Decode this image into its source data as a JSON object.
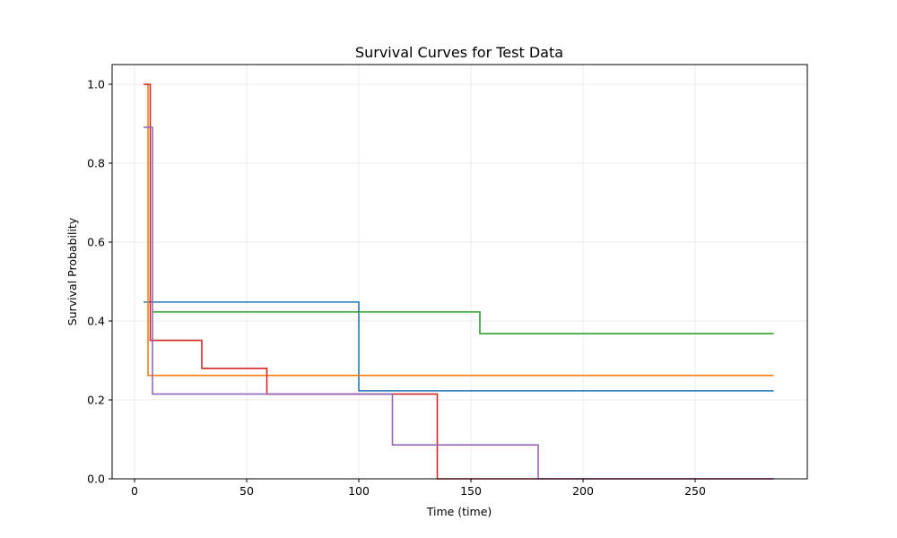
{
  "chart_data": {
    "type": "line",
    "step": "post",
    "title": "Survival Curves for Test Data",
    "xlabel": "Time (time)",
    "ylabel": "Survival Probability",
    "xlim": [
      -10,
      300
    ],
    "ylim": [
      0,
      1.05
    ],
    "xticks": [
      0,
      50,
      100,
      150,
      200,
      250
    ],
    "xtick_labels": [
      "0",
      "50",
      "100",
      "150",
      "200",
      "250"
    ],
    "yticks": [
      0.0,
      0.2,
      0.4,
      0.6,
      0.8,
      1.0
    ],
    "ytick_labels": [
      "0.0",
      "0.2",
      "0.4",
      "0.6",
      "0.8",
      "1.0"
    ],
    "grid": true,
    "legend": false,
    "series": [
      {
        "color": "#1f77b4",
        "x": [
          4,
          8,
          100,
          285
        ],
        "y": [
          0.448,
          0.448,
          0.223,
          0.223
        ]
      },
      {
        "color": "#ff7f0e",
        "x": [
          5,
          6,
          285
        ],
        "y": [
          1.0,
          0.262,
          0.262
        ]
      },
      {
        "color": "#2ca02c",
        "x": [
          8,
          154,
          285
        ],
        "y": [
          0.423,
          0.368,
          0.368
        ]
      },
      {
        "color": "#d62728",
        "x": [
          4,
          7,
          30,
          59,
          135,
          285
        ],
        "y": [
          1.0,
          0.351,
          0.28,
          0.215,
          0.0,
          0.0
        ]
      },
      {
        "color": "#9467bd",
        "x": [
          4,
          8,
          115,
          180,
          285
        ],
        "y": [
          0.891,
          0.215,
          0.086,
          0.0,
          0.0
        ]
      }
    ]
  }
}
